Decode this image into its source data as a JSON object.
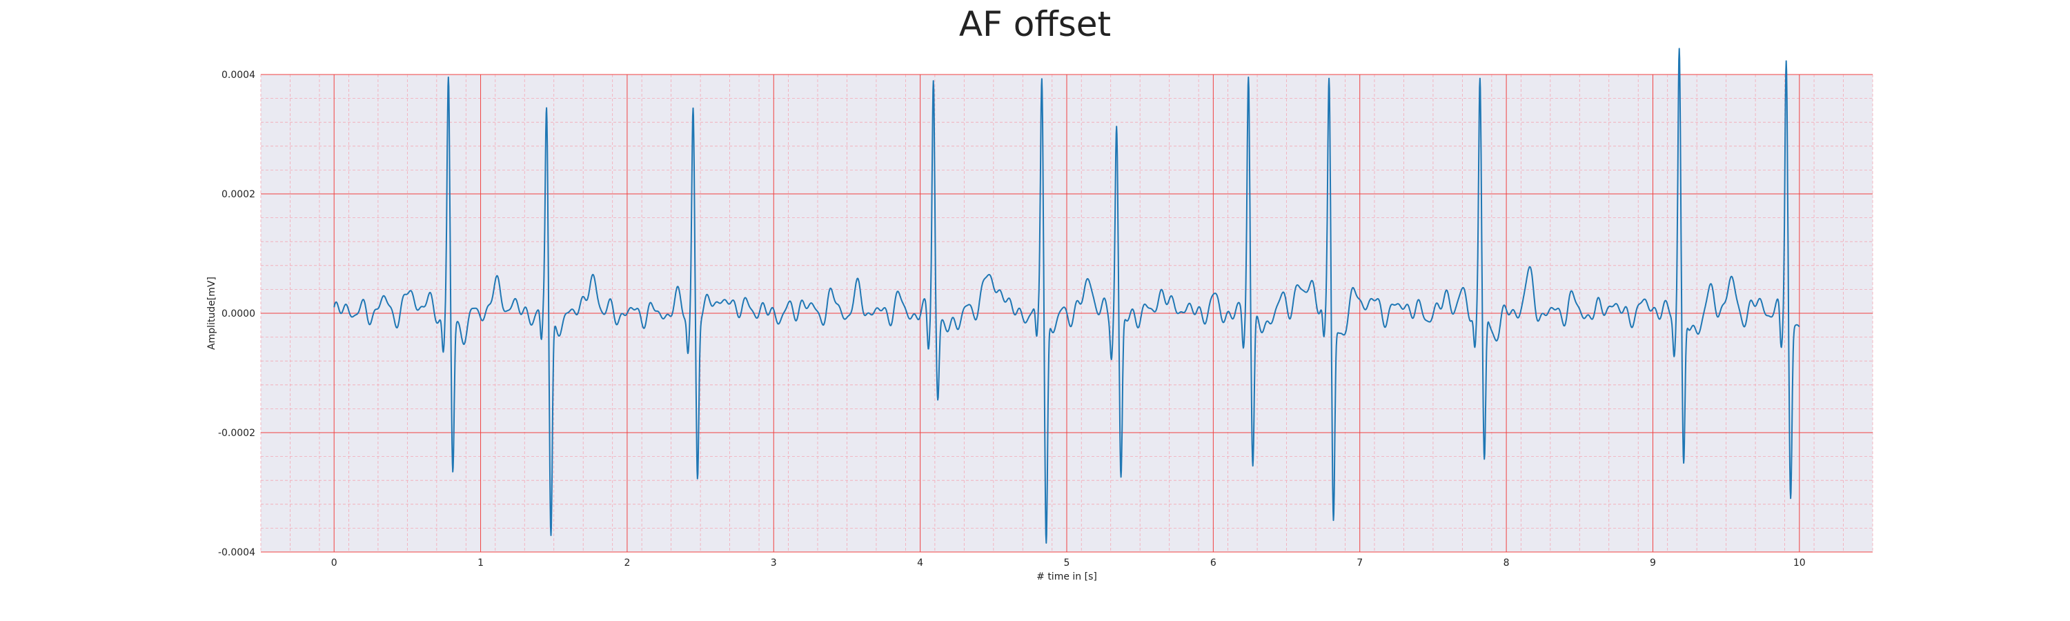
{
  "chart_data": {
    "type": "line",
    "title": "AF offset",
    "xlabel": "# time in [s]",
    "ylabel": "Amplitude[mV]",
    "xlim": [
      -0.5,
      10.5
    ],
    "ylim": [
      -0.0004,
      0.0004
    ],
    "xticks": [
      0,
      1,
      2,
      3,
      4,
      5,
      6,
      7,
      8,
      9,
      10
    ],
    "yticks": [
      -0.0004,
      -0.0002,
      0.0,
      0.0002,
      0.0004
    ],
    "ytick_labels": [
      "-0.0004",
      "-0.0002",
      "0.0000",
      "0.0002",
      "0.0004"
    ],
    "grid": "major and minor",
    "series": [
      {
        "color": "#1f77b4",
        "beats": [
          {
            "t": 0.78,
            "peak": 0.00039,
            "trough": -0.00026
          },
          {
            "t": 1.45,
            "peak": 0.00035,
            "trough": -0.00035
          },
          {
            "t": 2.45,
            "peak": 0.000345,
            "trough": -0.00028
          },
          {
            "t": 4.09,
            "peak": 0.000405,
            "trough": -0.00013
          },
          {
            "t": 4.83,
            "peak": 0.00041,
            "trough": -0.00037
          },
          {
            "t": 5.34,
            "peak": 0.00032,
            "trough": -0.00027
          },
          {
            "t": 6.24,
            "peak": 0.000415,
            "trough": -0.00024
          },
          {
            "t": 6.79,
            "peak": 0.000395,
            "trough": -0.00034
          },
          {
            "t": 7.82,
            "peak": 0.000405,
            "trough": -0.00025
          },
          {
            "t": 9.18,
            "peak": 0.000455,
            "trough": -0.00026
          },
          {
            "t": 9.91,
            "peak": 0.00044,
            "trough": -0.0003
          }
        ],
        "bumps": [
          {
            "t": 0.1,
            "a": 1e-05
          },
          {
            "t": 0.33,
            "a": 2e-05
          },
          {
            "t": 0.52,
            "a": 3.5e-05
          },
          {
            "t": 0.62,
            "a": 2e-05
          },
          {
            "t": 1.1,
            "a": 4.5e-05
          },
          {
            "t": 1.2,
            "a": 2e-05
          },
          {
            "t": 1.77,
            "a": 6e-05
          },
          {
            "t": 1.65,
            "a": 2e-05
          },
          {
            "t": 2.35,
            "a": 2e-05
          },
          {
            "t": 2.56,
            "a": 6.5e-05
          },
          {
            "t": 2.7,
            "a": 3e-05
          },
          {
            "t": 2.85,
            "a": 1.5e-05
          },
          {
            "t": 3.2,
            "a": 2e-05
          },
          {
            "t": 3.4,
            "a": 2.5e-05
          },
          {
            "t": 3.58,
            "a": 3.5e-05
          },
          {
            "t": 3.85,
            "a": 2e-05
          },
          {
            "t": 4.45,
            "a": 7e-05
          },
          {
            "t": 4.55,
            "a": 5e-05
          },
          {
            "t": 4.97,
            "a": 1.5e-05
          },
          {
            "t": 5.15,
            "a": 6e-05
          },
          {
            "t": 5.45,
            "a": 2.5e-05
          },
          {
            "t": 5.65,
            "a": 4e-05
          },
          {
            "t": 5.78,
            "a": 1.5e-05
          },
          {
            "t": 6.0,
            "a": 2e-05
          },
          {
            "t": 6.45,
            "a": 2e-05
          },
          {
            "t": 6.58,
            "a": 5e-05
          },
          {
            "t": 6.68,
            "a": 5e-05
          },
          {
            "t": 6.98,
            "a": 4.5e-05
          },
          {
            "t": 7.1,
            "a": 2e-05
          },
          {
            "t": 7.3,
            "a": 2e-05
          },
          {
            "t": 7.6,
            "a": 3e-05
          },
          {
            "t": 7.7,
            "a": 2.5e-05
          },
          {
            "t": 8.15,
            "a": 6e-05
          },
          {
            "t": 8.45,
            "a": 2e-05
          },
          {
            "t": 8.7,
            "a": 2e-05
          },
          {
            "t": 8.97,
            "a": 2e-05
          },
          {
            "t": 9.4,
            "a": 3e-05
          },
          {
            "t": 9.53,
            "a": 5e-05
          },
          {
            "t": 9.73,
            "a": 2e-05
          }
        ]
      }
    ]
  }
}
